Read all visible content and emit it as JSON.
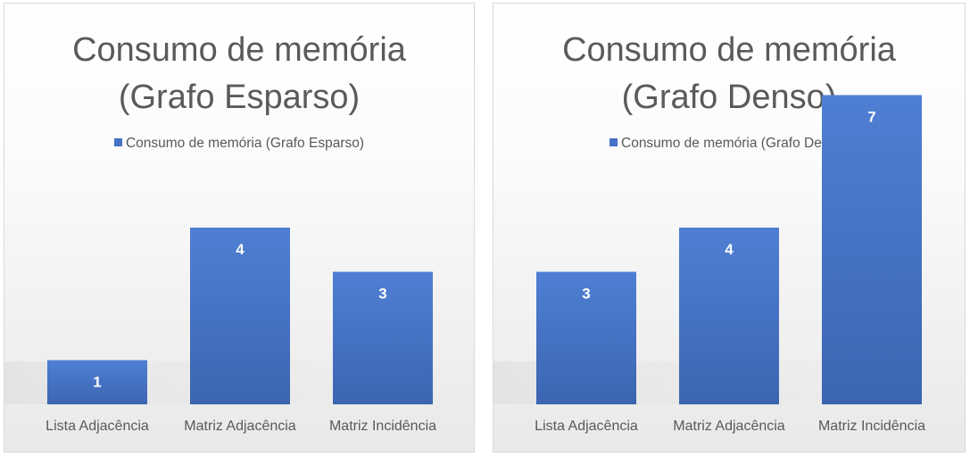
{
  "chart_data": [
    {
      "type": "bar",
      "title_lines": [
        "Consumo de memória",
        "(Grafo Esparso)"
      ],
      "legend": "Consumo de memória (Grafo Esparso)",
      "categories": [
        "Lista Adjacência",
        "Matriz Adjacência",
        "Matriz Incidência"
      ],
      "series": [
        {
          "name": "Consumo de memória (Grafo Esparso)",
          "values": [
            1,
            4,
            3
          ]
        }
      ],
      "ylim": [
        0,
        8
      ],
      "grid": false,
      "legend_position": "top",
      "bar_color": "#4472c4",
      "data_labels": true
    },
    {
      "type": "bar",
      "title_lines": [
        "Consumo de memória",
        "(Grafo Denso)"
      ],
      "legend": "Consumo de memória (Grafo Denso)",
      "categories": [
        "Lista Adjacência",
        "Matriz Adjacência",
        "Matriz Incidência"
      ],
      "series": [
        {
          "name": "Consumo de memória (Grafo Denso)",
          "values": [
            3,
            4,
            7
          ]
        }
      ],
      "ylim": [
        0,
        8
      ],
      "grid": false,
      "legend_position": "top",
      "bar_color": "#4472c4",
      "data_labels": true
    }
  ]
}
